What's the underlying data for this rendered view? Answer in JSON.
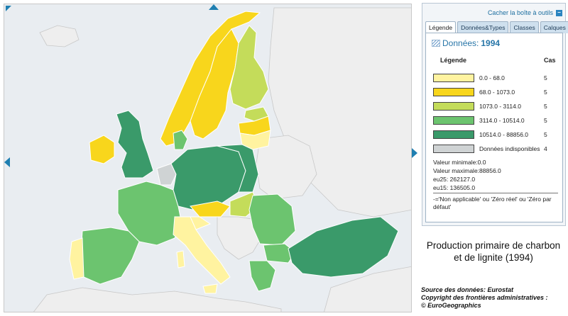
{
  "toolbox": {
    "hide_label": "Cacher la boîte à outils",
    "hide_button": "−",
    "tabs": [
      "Légende",
      "Données&Types",
      "Classes",
      "Calques"
    ]
  },
  "legend": {
    "data_prefix": "Données:",
    "data_year": "1994",
    "header_legend": "Légende",
    "header_count": "Cas",
    "classes": [
      {
        "range": "0.0 - 68.0",
        "count": "5",
        "color": "#fff3a0"
      },
      {
        "range": "68.0 - 1073.0",
        "count": "5",
        "color": "#f8d61c"
      },
      {
        "range": "1073.0 - 3114.0",
        "count": "5",
        "color": "#c4dc5a"
      },
      {
        "range": "3114.0 - 10514.0",
        "count": "5",
        "color": "#6cc46f"
      },
      {
        "range": "10514.0 - 88856.0",
        "count": "5",
        "color": "#3a9a6a"
      }
    ],
    "unavailable": {
      "label": "Données indisponibles",
      "count": "4",
      "color": "#cfd3d4"
    },
    "min": "Valeur minimale:0.0",
    "max": "Valeur maximale:88856.0",
    "eu25": "eu25: 262127.0",
    "eu15": "eu15: 136505.0",
    "note": "-='Non applicable' ou 'Zéro réel' ou 'Zéro par défaut'"
  },
  "map_title_line1": "Production primaire de charbon",
  "map_title_line2": "et de lignite (1994)",
  "source_line1": "Source des données: Eurostat",
  "source_line2": "Copyright des frontières administratives :",
  "source_line3": "© EuroGeographics",
  "colors": {
    "sea": "#e9edf1",
    "non_eu": "#eeeeee",
    "border": "#ffffff",
    "pan_arrow": "#1f7fb1"
  }
}
